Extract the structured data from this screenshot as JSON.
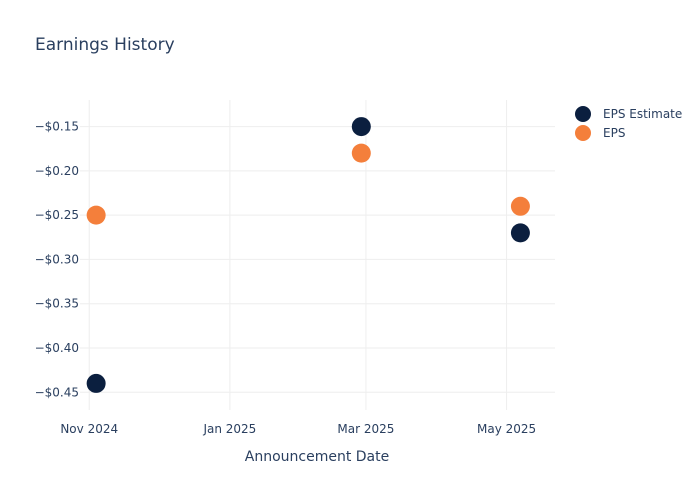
{
  "chart_data": {
    "type": "scatter",
    "title": "Earnings History",
    "xlabel": "Announcement Date",
    "ylabel": "",
    "x_ticks": [
      {
        "label": "Nov 2024",
        "date": "2024-11-01"
      },
      {
        "label": "Jan 2025",
        "date": "2025-01-01"
      },
      {
        "label": "Mar 2025",
        "date": "2025-03-01"
      },
      {
        "label": "May 2025",
        "date": "2025-05-01"
      }
    ],
    "y_ticks": [
      {
        "label": "−$0.15",
        "value": -0.15
      },
      {
        "label": "−$0.20",
        "value": -0.2
      },
      {
        "label": "−$0.25",
        "value": -0.25
      },
      {
        "label": "−$0.30",
        "value": -0.3
      },
      {
        "label": "−$0.35",
        "value": -0.35
      },
      {
        "label": "−$0.40",
        "value": -0.4
      },
      {
        "label": "−$0.45",
        "value": -0.45
      }
    ],
    "xlim": [
      "2024-10-28",
      "2025-05-22"
    ],
    "ylim": [
      -0.47,
      -0.12
    ],
    "grid": true,
    "legend_position": "top-right",
    "series": [
      {
        "name": "EPS Estimate",
        "color": "#0b1f3f",
        "points": [
          {
            "x": "2024-11-04",
            "y": -0.44
          },
          {
            "x": "2025-02-27",
            "y": -0.15
          },
          {
            "x": "2025-05-07",
            "y": -0.27
          }
        ]
      },
      {
        "name": "EPS",
        "color": "#f47f3b",
        "points": [
          {
            "x": "2024-11-04",
            "y": -0.25
          },
          {
            "x": "2025-02-27",
            "y": -0.18
          },
          {
            "x": "2025-05-07",
            "y": -0.24
          }
        ]
      }
    ]
  }
}
